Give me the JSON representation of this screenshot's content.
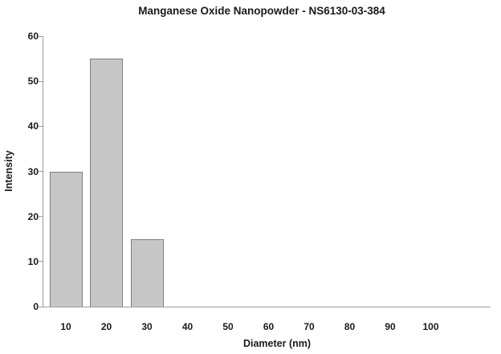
{
  "chart_data": {
    "type": "bar",
    "title": "Manganese Oxide Nanopowder - NS6130-03-384",
    "xlabel": "Diameter (nm)",
    "ylabel": "Intensity",
    "categories": [
      10,
      20,
      30,
      40,
      50,
      60,
      70,
      80,
      90,
      100
    ],
    "values": [
      30,
      55,
      15,
      0,
      0,
      0,
      0,
      0,
      0,
      0
    ],
    "yticks": [
      0,
      10,
      20,
      30,
      40,
      50,
      60
    ],
    "ylim": [
      0,
      60
    ],
    "grid": false,
    "legend": null,
    "colors": {
      "bar_fill": "#c6c6c6",
      "bar_border": "#7f7f7f",
      "axis": "#9d9d9d",
      "text": "#1a1a1a",
      "background": "#ffffff"
    }
  }
}
